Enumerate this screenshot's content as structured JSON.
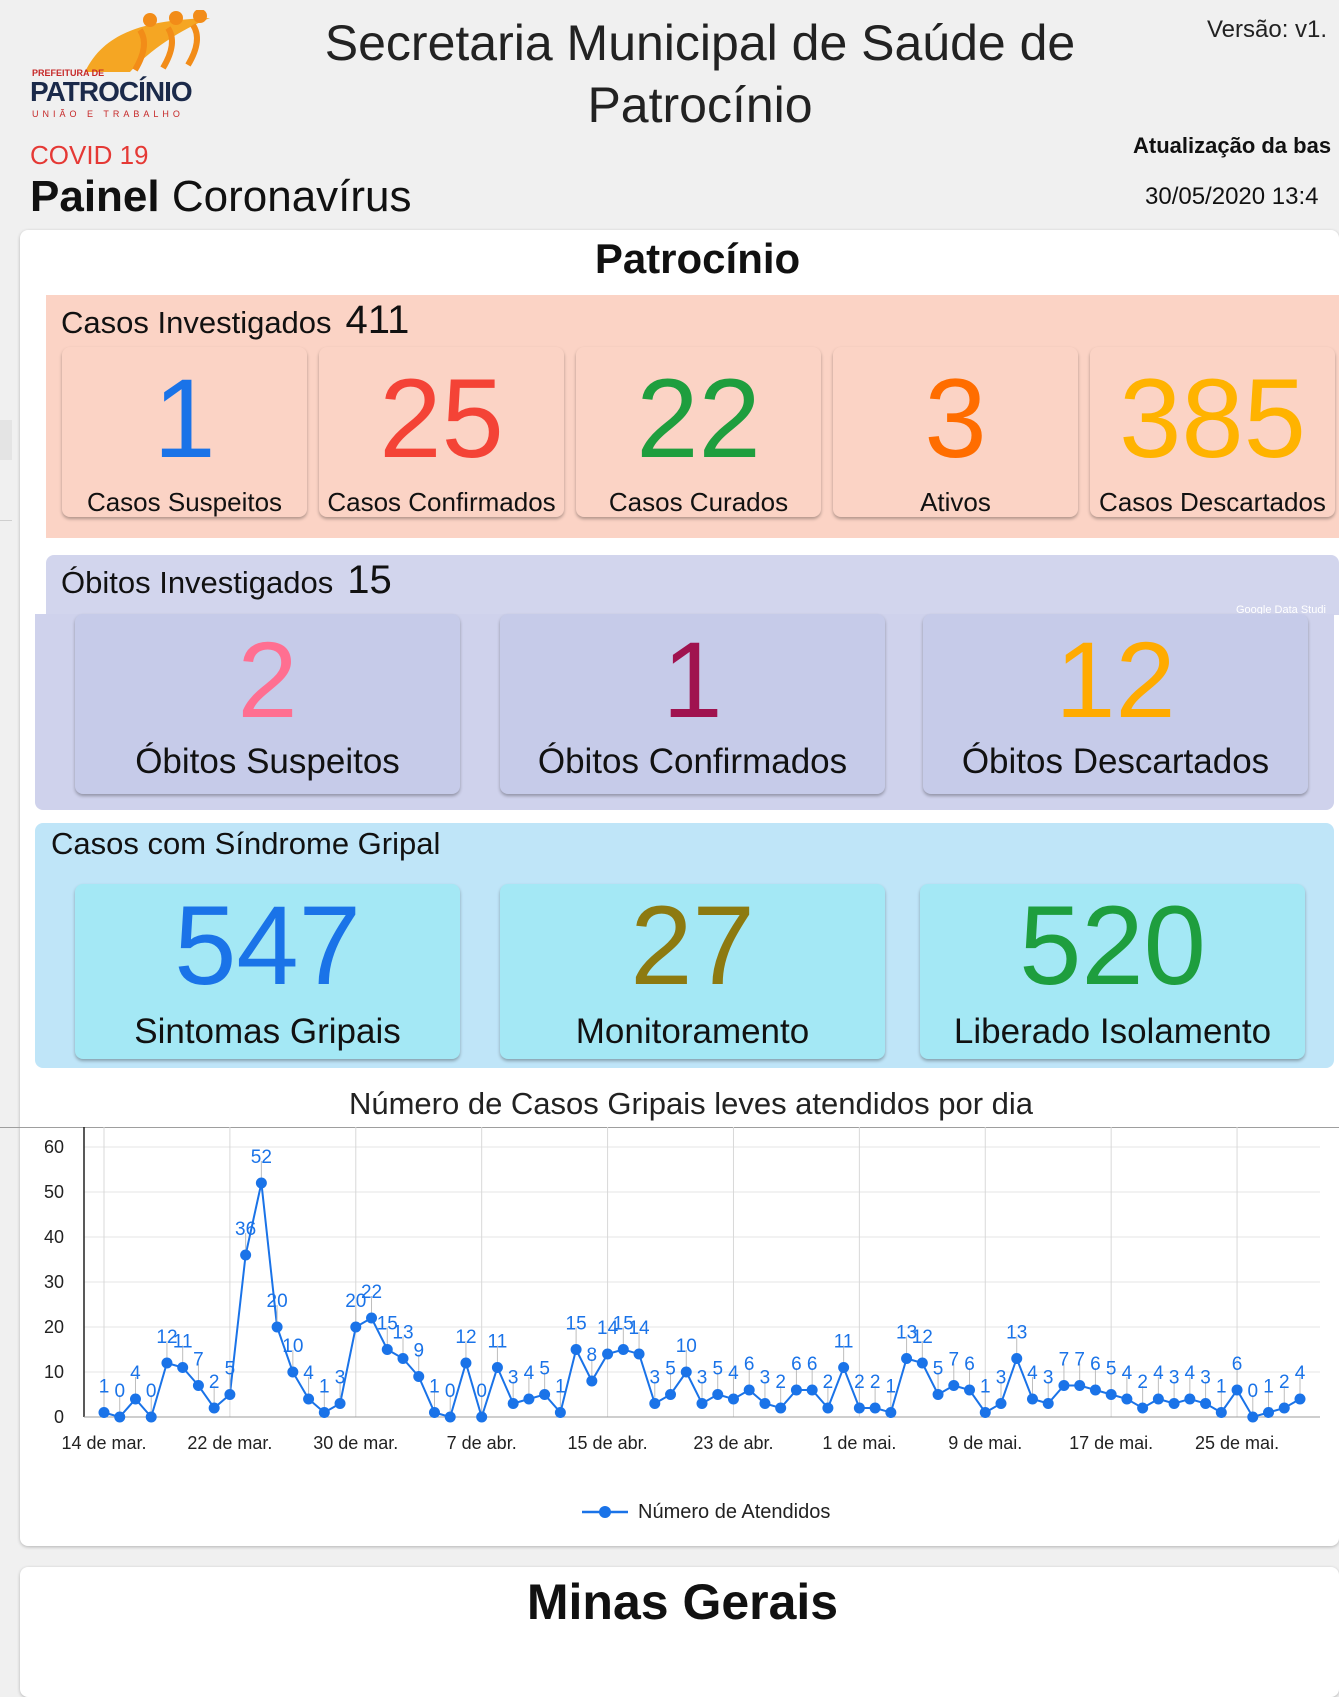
{
  "header": {
    "logo": {
      "small_text": "PREFEITURA DE",
      "name": "PATROCÍNIO",
      "tagline": "UNIÃO E TRABALHO"
    },
    "title": "Secretaria Municipal de Saúde de Patrocínio",
    "version": "Versão: v1.",
    "covid": "COVID 19",
    "painel_bold": "Painel",
    "painel_rest": " Coronavírus",
    "update_label": "Atualização da bas",
    "update_date": "30/05/2020 13:4"
  },
  "city": "Patrocínio",
  "cases": {
    "label": "Casos Investigados",
    "total": "411",
    "tiles": [
      {
        "value": "1",
        "label": "Casos Suspeitos",
        "color": "#1a73e8"
      },
      {
        "value": "25",
        "label": "Casos Confirmados",
        "color": "#f44336"
      },
      {
        "value": "22",
        "label": "Casos Curados",
        "color": "#1e9e3e"
      },
      {
        "value": "3",
        "label": "Ativos",
        "color": "#ff6d00"
      },
      {
        "value": "385",
        "label": "Casos Descartados",
        "color": "#ffb300"
      }
    ]
  },
  "deaths": {
    "label": "Óbitos Investigados",
    "total": "15",
    "watermark": "Google Data Studi",
    "tiles": [
      {
        "value": "2",
        "label": "Óbitos Suspeitos",
        "color": "#ff6f91"
      },
      {
        "value": "1",
        "label": "Óbitos Confirmados",
        "color": "#a0134f"
      },
      {
        "value": "12",
        "label": "Óbitos Descartados",
        "color": "#ffab00"
      }
    ]
  },
  "flu": {
    "label": "Casos com Síndrome Gripal",
    "tiles": [
      {
        "value": "547",
        "label": "Sintomas Gripais",
        "color": "#1a73e8"
      },
      {
        "value": "27",
        "label": "Monitoramento",
        "color": "#8d7a10"
      },
      {
        "value": "520",
        "label": "Liberado Isolamento",
        "color": "#1e9e3e"
      }
    ]
  },
  "chart_data": {
    "type": "line",
    "title": "Número de Casos Gripais leves atendidos por dia",
    "ylim": [
      0,
      60
    ],
    "y_ticks": [
      0,
      10,
      20,
      30,
      40,
      50,
      60
    ],
    "x_tick_labels": [
      "14 de mar.",
      "22 de mar.",
      "30 de mar.",
      "7 de abr.",
      "15 de abr.",
      "23 de abr.",
      "1 de mai.",
      "9 de mai.",
      "17 de mai.",
      "25 de mai."
    ],
    "series": [
      {
        "name": "Número de Atendidos",
        "color": "#1a73e8",
        "values": [
          1,
          0,
          4,
          0,
          12,
          11,
          7,
          2,
          5,
          36,
          52,
          20,
          10,
          4,
          1,
          3,
          20,
          22,
          15,
          13,
          9,
          1,
          0,
          12,
          0,
          11,
          3,
          4,
          5,
          1,
          15,
          8,
          14,
          15,
          14,
          3,
          5,
          10,
          3,
          5,
          4,
          6,
          3,
          2,
          6,
          6,
          2,
          11,
          2,
          2,
          1,
          13,
          12,
          5,
          7,
          6,
          1,
          3,
          13,
          4,
          3,
          7,
          7,
          6,
          5,
          4,
          2,
          4,
          3,
          4,
          3,
          1,
          6,
          0,
          1,
          2,
          4
        ]
      }
    ]
  },
  "minas": "Minas Gerais"
}
